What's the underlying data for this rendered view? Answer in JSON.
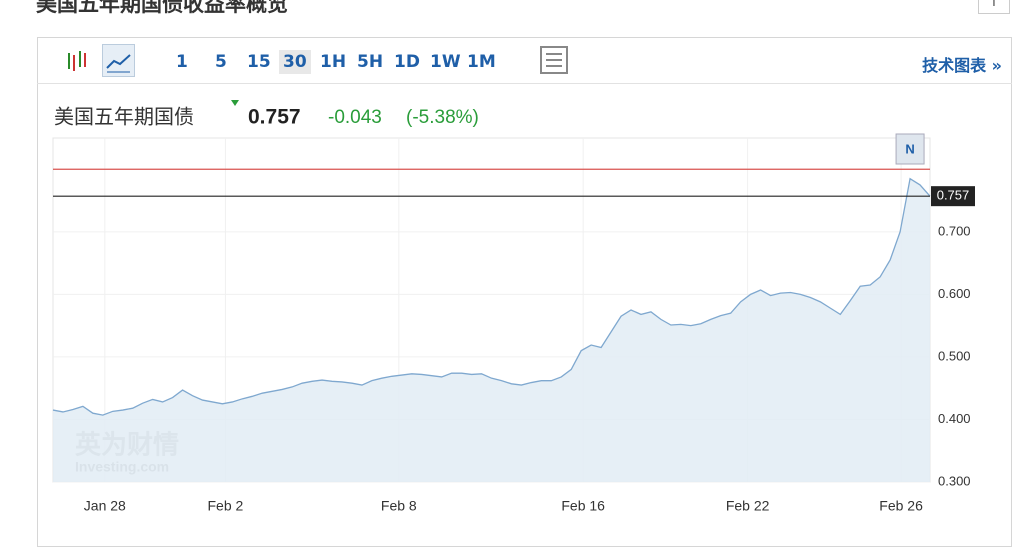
{
  "page_title": "美国五年期国债收益率概览",
  "toolbar": {
    "intervals": [
      "1",
      "5",
      "15",
      "30",
      "1H",
      "5H",
      "1D",
      "1W",
      "1M"
    ],
    "selected": "30",
    "link": "技术图表 »"
  },
  "quote": {
    "name": "美国五年期国债",
    "last": 0.757,
    "change": -0.043,
    "change_pct": "(-5.38%)"
  },
  "chart_data": {
    "type": "area",
    "values": [
      0.415,
      0.412,
      0.416,
      0.421,
      0.41,
      0.407,
      0.413,
      0.415,
      0.418,
      0.426,
      0.432,
      0.428,
      0.435,
      0.447,
      0.438,
      0.431,
      0.428,
      0.425,
      0.428,
      0.433,
      0.437,
      0.442,
      0.445,
      0.448,
      0.452,
      0.458,
      0.461,
      0.463,
      0.461,
      0.46,
      0.458,
      0.455,
      0.462,
      0.466,
      0.469,
      0.471,
      0.473,
      0.472,
      0.47,
      0.468,
      0.474,
      0.474,
      0.472,
      0.473,
      0.466,
      0.462,
      0.457,
      0.455,
      0.459,
      0.462,
      0.462,
      0.468,
      0.48,
      0.51,
      0.519,
      0.515,
      0.54,
      0.565,
      0.575,
      0.568,
      0.572,
      0.56,
      0.551,
      0.552,
      0.55,
      0.553,
      0.56,
      0.566,
      0.57,
      0.588,
      0.6,
      0.607,
      0.598,
      0.602,
      0.603,
      0.6,
      0.595,
      0.588,
      0.578,
      0.568,
      0.59,
      0.613,
      0.615,
      0.628,
      0.655,
      0.7,
      0.785,
      0.775,
      0.757
    ],
    "color": "#7fa8cf",
    "fill": "#e2ecf5",
    "xlim": [
      0,
      88
    ],
    "xticks": [
      {
        "value": 5.2,
        "label": "Jan 28"
      },
      {
        "value": 17.3,
        "label": "Feb 2"
      },
      {
        "value": 34.7,
        "label": "Feb 8"
      },
      {
        "value": 53.2,
        "label": "Feb 16"
      },
      {
        "value": 69.7,
        "label": "Feb 22"
      },
      {
        "value": 85.1,
        "label": "Feb 26"
      }
    ],
    "ylim": [
      0.3,
      0.85
    ],
    "yticks": [
      {
        "value": 0.3,
        "label": "0.300"
      },
      {
        "value": 0.4,
        "label": "0.400"
      },
      {
        "value": 0.5,
        "label": "0.500"
      },
      {
        "value": 0.6,
        "label": "0.600"
      },
      {
        "value": 0.7,
        "label": "0.700"
      }
    ],
    "reference_line": {
      "value": 0.8,
      "color": "#d9534f"
    },
    "annotation": {
      "text": "N",
      "x": 86
    },
    "watermark": [
      "英为财情",
      "Investing.com"
    ],
    "grid": true
  }
}
